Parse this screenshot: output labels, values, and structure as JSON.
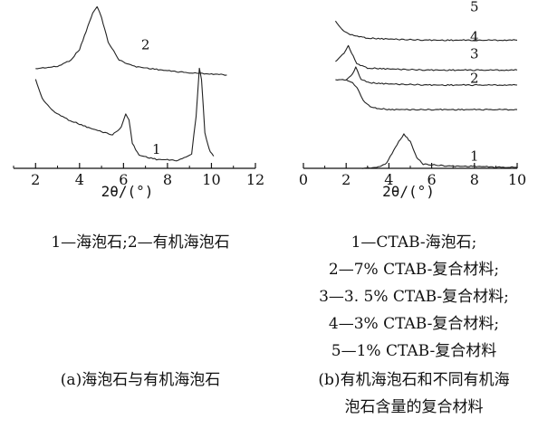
{
  "chart_data": [
    {
      "type": "line",
      "panel": "a",
      "xlabel": "2θ/(°)",
      "xlim": [
        1,
        12
      ],
      "x_ticks": [
        "2",
        "4",
        "6",
        "8",
        "10",
        "12"
      ],
      "series": [
        {
          "name": "2",
          "x": [
            2.0,
            3.0,
            3.6,
            4.0,
            4.3,
            4.6,
            4.8,
            5.0,
            5.3,
            5.8,
            6.5,
            8.0,
            9.0,
            10.0,
            10.7
          ],
          "values": [
            0.9,
            0.92,
            0.98,
            1.08,
            1.25,
            1.42,
            1.48,
            1.38,
            1.15,
            0.98,
            0.92,
            0.88,
            0.86,
            0.85,
            0.84
          ]
        },
        {
          "name": "1",
          "x": [
            2.0,
            2.3,
            2.8,
            3.5,
            4.5,
            5.5,
            5.9,
            6.1,
            6.25,
            6.4,
            6.7,
            7.5,
            8.5,
            9.1,
            9.3,
            9.45,
            9.55,
            9.7,
            9.85,
            9.95,
            10.1
          ],
          "values": [
            0.8,
            0.62,
            0.5,
            0.42,
            0.34,
            0.28,
            0.35,
            0.48,
            0.42,
            0.2,
            0.09,
            0.05,
            0.04,
            0.1,
            0.45,
            0.9,
            0.8,
            0.3,
            0.18,
            0.12,
            0.08
          ]
        }
      ]
    },
    {
      "type": "line",
      "panel": "b",
      "xlabel": "2θ/(°)",
      "xlim": [
        0,
        10
      ],
      "x_ticks": [
        "0",
        "2",
        "4",
        "6",
        "8",
        "10"
      ],
      "series": [
        {
          "name": "5",
          "x": [
            1.5,
            1.8,
            2.2,
            3.0,
            4.0,
            6.0,
            8.0,
            10.0
          ],
          "values": [
            1.38,
            1.3,
            1.25,
            1.22,
            1.21,
            1.2,
            1.2,
            1.2
          ]
        },
        {
          "name": "4",
          "x": [
            1.5,
            1.9,
            2.1,
            2.25,
            2.5,
            3.0,
            4.0,
            6.0,
            8.0,
            10.0
          ],
          "values": [
            1.0,
            1.08,
            1.15,
            1.08,
            0.98,
            0.94,
            0.93,
            0.92,
            0.92,
            0.92
          ]
        },
        {
          "name": "3",
          "x": [
            1.5,
            2.0,
            2.3,
            2.45,
            2.7,
            3.2,
            4.0,
            6.0,
            8.0,
            10.0
          ],
          "values": [
            0.83,
            0.83,
            0.88,
            0.95,
            0.83,
            0.8,
            0.79,
            0.78,
            0.78,
            0.78
          ]
        },
        {
          "name": "2",
          "x": [
            2.0,
            2.3,
            2.5,
            2.6,
            2.8,
            3.2,
            4.0,
            6.0,
            8.0,
            10.0
          ],
          "values": [
            0.83,
            0.8,
            0.76,
            0.72,
            0.63,
            0.57,
            0.55,
            0.55,
            0.55,
            0.55
          ]
        },
        {
          "name": "1",
          "x": [
            2.7,
            3.5,
            3.9,
            4.3,
            4.7,
            5.0,
            5.3,
            5.6,
            6.2,
            7.0,
            8.0,
            9.0,
            10.0
          ],
          "values": [
            0.0,
            0.01,
            0.05,
            0.2,
            0.32,
            0.25,
            0.1,
            0.04,
            0.03,
            0.02,
            0.02,
            0.01,
            0.01
          ]
        }
      ]
    }
  ],
  "captions": {
    "a_legend": "1—海泡石;2—有机海泡石",
    "a_title": "(a)海泡石与有机海泡石",
    "b_lines": [
      "1—CTAB-海泡石;",
      "2—7% CTAB-复合材料;",
      "3—3. 5% CTAB-复合材料;",
      "4—3% CTAB-复合材料;",
      "5—1% CTAB-复合材料"
    ],
    "b_title_1": "(b)有机海泡石和不同有机海",
    "b_title_2": "泡石含量的复合材料"
  }
}
